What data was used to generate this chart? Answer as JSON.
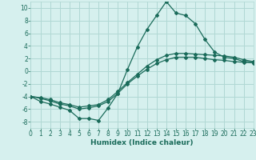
{
  "xlabel": "Humidex (Indice chaleur)",
  "background_color": "#d6f0ee",
  "grid_color": "#b0d8d4",
  "line_color": "#1a6b5a",
  "x_min": 0,
  "x_max": 23,
  "y_min": -9,
  "y_max": 11,
  "line1_x": [
    0,
    1,
    2,
    3,
    4,
    5,
    6,
    7,
    8,
    9,
    10,
    11,
    12,
    13,
    14,
    15,
    16,
    17,
    18,
    19,
    20,
    21,
    22,
    23
  ],
  "line1_y": [
    -4,
    -4.8,
    -5.2,
    -5.7,
    -6.2,
    -7.5,
    -7.5,
    -7.8,
    -5.8,
    -3.5,
    0.3,
    3.8,
    6.6,
    8.8,
    11.0,
    9.2,
    8.8,
    7.5,
    5.0,
    3.0,
    2.2,
    2.0,
    1.5,
    1.5
  ],
  "line2_x": [
    0,
    1,
    2,
    3,
    4,
    5,
    6,
    7,
    8,
    9,
    10,
    11,
    12,
    13,
    14,
    15,
    16,
    17,
    18,
    19,
    20,
    21,
    22,
    23
  ],
  "line2_y": [
    -4.0,
    -4.2,
    -4.5,
    -5.0,
    -5.3,
    -5.7,
    -5.5,
    -5.3,
    -4.5,
    -3.2,
    -1.8,
    -0.5,
    0.8,
    1.8,
    2.5,
    2.8,
    2.8,
    2.7,
    2.6,
    2.5,
    2.4,
    2.2,
    1.8,
    1.5
  ],
  "line3_x": [
    0,
    1,
    2,
    3,
    4,
    5,
    6,
    7,
    8,
    9,
    10,
    11,
    12,
    13,
    14,
    15,
    16,
    17,
    18,
    19,
    20,
    21,
    22,
    23
  ],
  "line3_y": [
    -4.0,
    -4.3,
    -4.7,
    -5.2,
    -5.5,
    -6.0,
    -5.8,
    -5.5,
    -4.8,
    -3.5,
    -2.0,
    -0.8,
    0.3,
    1.2,
    1.8,
    2.2,
    2.2,
    2.2,
    2.0,
    1.8,
    1.7,
    1.5,
    1.4,
    1.3
  ],
  "xticks": [
    0,
    1,
    2,
    3,
    4,
    5,
    6,
    7,
    8,
    9,
    10,
    11,
    12,
    13,
    14,
    15,
    16,
    17,
    18,
    19,
    20,
    21,
    22,
    23
  ],
  "yticks": [
    -8,
    -6,
    -4,
    -2,
    0,
    2,
    4,
    6,
    8,
    10
  ],
  "marker": "D",
  "markersize": 2,
  "linewidth": 0.9,
  "tick_fontsize": 5.5,
  "xlabel_fontsize": 6.5
}
